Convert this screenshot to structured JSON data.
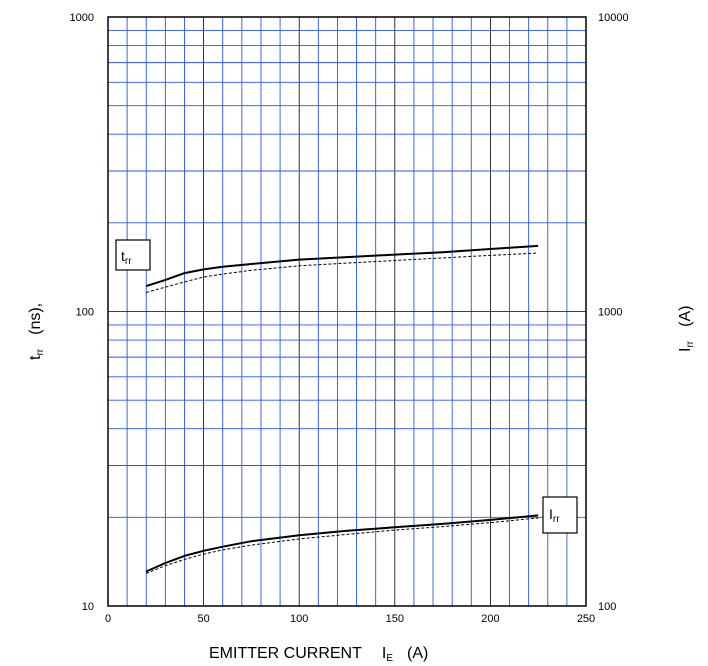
{
  "chart_data": {
    "type": "line",
    "title": "",
    "xlabel": {
      "main": "EMITTER CURRENT",
      "symbol": "I",
      "symbol_sub": "E",
      "unit": "(A)"
    },
    "ylabel_left": {
      "symbol": "t",
      "symbol_sub": "rr",
      "unit": "(ns),",
      "scale": "log"
    },
    "ylabel_right": {
      "symbol": "I",
      "symbol_sub": "rr",
      "unit": "(A)",
      "scale": "log"
    },
    "x_range": [
      0,
      250
    ],
    "x_ticks": [
      "0",
      "50",
      "100",
      "150",
      "200",
      "250"
    ],
    "y_left_range": [
      10,
      1000
    ],
    "y_left_ticks": [
      "10",
      "100",
      "1000"
    ],
    "y_right_range": [
      100,
      10000
    ],
    "y_right_ticks": [
      "100",
      "1000",
      "10000"
    ],
    "grid": true,
    "grid_color": "#2b57d6",
    "series": [
      {
        "name": "trr",
        "label_symbol": "t",
        "label_sub": "rr",
        "axis": "left",
        "style": "solid",
        "x": [
          20,
          30,
          40,
          50,
          60,
          75,
          100,
          125,
          150,
          175,
          200,
          225
        ],
        "y": [
          122,
          128,
          135,
          139,
          142,
          145,
          150,
          153,
          156,
          159,
          163,
          167
        ]
      },
      {
        "name": "trr-dashed",
        "axis": "left",
        "style": "dashed",
        "x": [
          20,
          30,
          40,
          50,
          60,
          75,
          100,
          125,
          150,
          175,
          200,
          225
        ],
        "y": [
          116,
          121,
          126,
          131,
          134,
          138,
          143,
          146,
          149,
          152,
          155,
          158
        ]
      },
      {
        "name": "Irr",
        "label_symbol": "I",
        "label_sub": "rr",
        "axis": "right",
        "style": "solid",
        "x": [
          20,
          30,
          40,
          50,
          60,
          75,
          100,
          125,
          150,
          175,
          200,
          225
        ],
        "y": [
          131,
          140,
          148,
          154,
          159,
          166,
          174,
          180,
          185,
          190,
          196,
          203
        ]
      },
      {
        "name": "Irr-dashed",
        "axis": "right",
        "style": "dashed",
        "x": [
          20,
          30,
          40,
          50,
          60,
          75,
          100,
          125,
          150,
          175,
          200,
          225
        ],
        "y": [
          129,
          137,
          144,
          150,
          155,
          161,
          169,
          175,
          181,
          186,
          192,
          199
        ]
      }
    ]
  }
}
